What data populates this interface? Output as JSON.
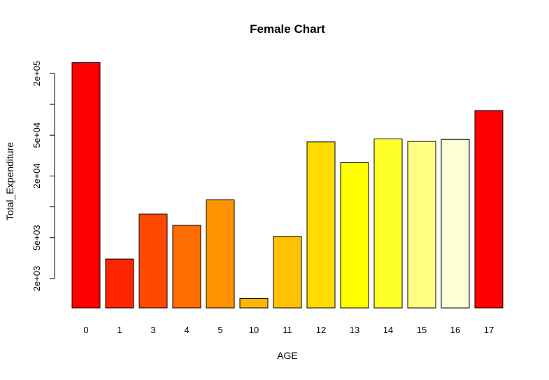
{
  "chart_data": {
    "type": "bar",
    "title": "Female Chart",
    "xlabel": "AGE",
    "ylabel": "Total_Expenditure",
    "y_scale": "log",
    "categories": [
      "0",
      "1",
      "3",
      "4",
      "5",
      "10",
      "11",
      "12",
      "13",
      "14",
      "15",
      "16",
      "17"
    ],
    "values": [
      255000,
      3100,
      8500,
      6600,
      11700,
      1280,
      5150,
      43000,
      27000,
      46000,
      43500,
      45500,
      87000
    ],
    "colors": [
      "#FF0000",
      "#FF2400",
      "#FF4900",
      "#FF6D00",
      "#FF9200",
      "#FFB600",
      "#FFC200",
      "#FFDB00",
      "#FFFF00",
      "#FFFF2A",
      "#FFFF80",
      "#FFFFD5",
      "#FF0000"
    ],
    "y_ticks": [
      {
        "value": 2000,
        "label": "2e+03"
      },
      {
        "value": 5000,
        "label": "5e+03"
      },
      {
        "value": 10000,
        "label": ""
      },
      {
        "value": 20000,
        "label": "2e+04"
      },
      {
        "value": 50000,
        "label": "5e+04"
      },
      {
        "value": 100000,
        "label": ""
      },
      {
        "value": 200000,
        "label": "2e+05"
      }
    ],
    "ylim": [
      1200,
      255000
    ],
    "grid": false,
    "legend": "none"
  }
}
